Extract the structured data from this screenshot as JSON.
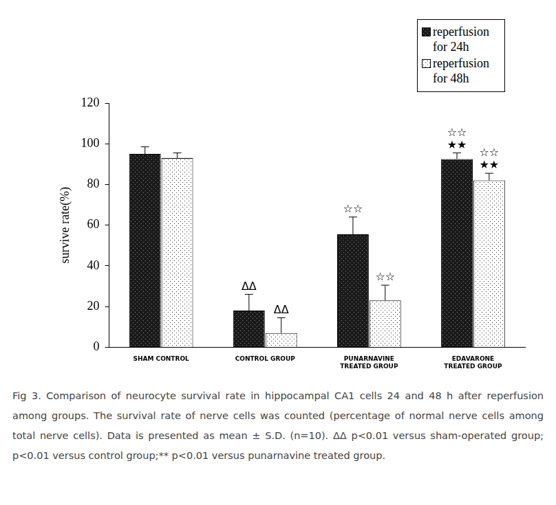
{
  "chart_data": {
    "type": "bar",
    "categories": [
      "SHAM CONTROL",
      "CONTROL GROUP",
      "PUNARNAVINE\nTREATED GROUP",
      "EDAVARONE\nTREATED GROUP"
    ],
    "series": [
      {
        "name": "reperfusion for 24h",
        "color": "#1a1a1a",
        "values": [
          95,
          18,
          55.5,
          92.5
        ],
        "errors": [
          3.5,
          8,
          8.5,
          3
        ],
        "annotations": [
          [],
          [
            "ΔΔ"
          ],
          [
            "☆☆"
          ],
          [
            "☆☆",
            "★★"
          ]
        ]
      },
      {
        "name": "reperfusion for 48h",
        "color": "#ffffff",
        "values": [
          93,
          7,
          23,
          82
        ],
        "errors": [
          2.5,
          7.5,
          7.5,
          3.5
        ],
        "annotations": [
          [],
          [
            "ΔΔ"
          ],
          [
            "☆☆"
          ],
          [
            "☆☆",
            "★★"
          ]
        ]
      }
    ],
    "y_label": "survive rate(%)",
    "ylim": [
      0,
      120
    ],
    "yticks": [
      0,
      20,
      40,
      60,
      80,
      100,
      120
    ],
    "grid": false,
    "legend": "top-right",
    "caption": "Fig 3. Comparison of neurocyte survival rate in hippocampal CA1 cells 24 and 48 h after reperfusion among groups. The survival rate of nerve cells was counted (percentage of normal nerve cells among total nerve cells). Data is presented as mean ± S.D. (n=10). ΔΔ p<0.01 versus sham-operated group; p<0.01 versus control group;** p<0.01 versus punarnavine treated group."
  }
}
